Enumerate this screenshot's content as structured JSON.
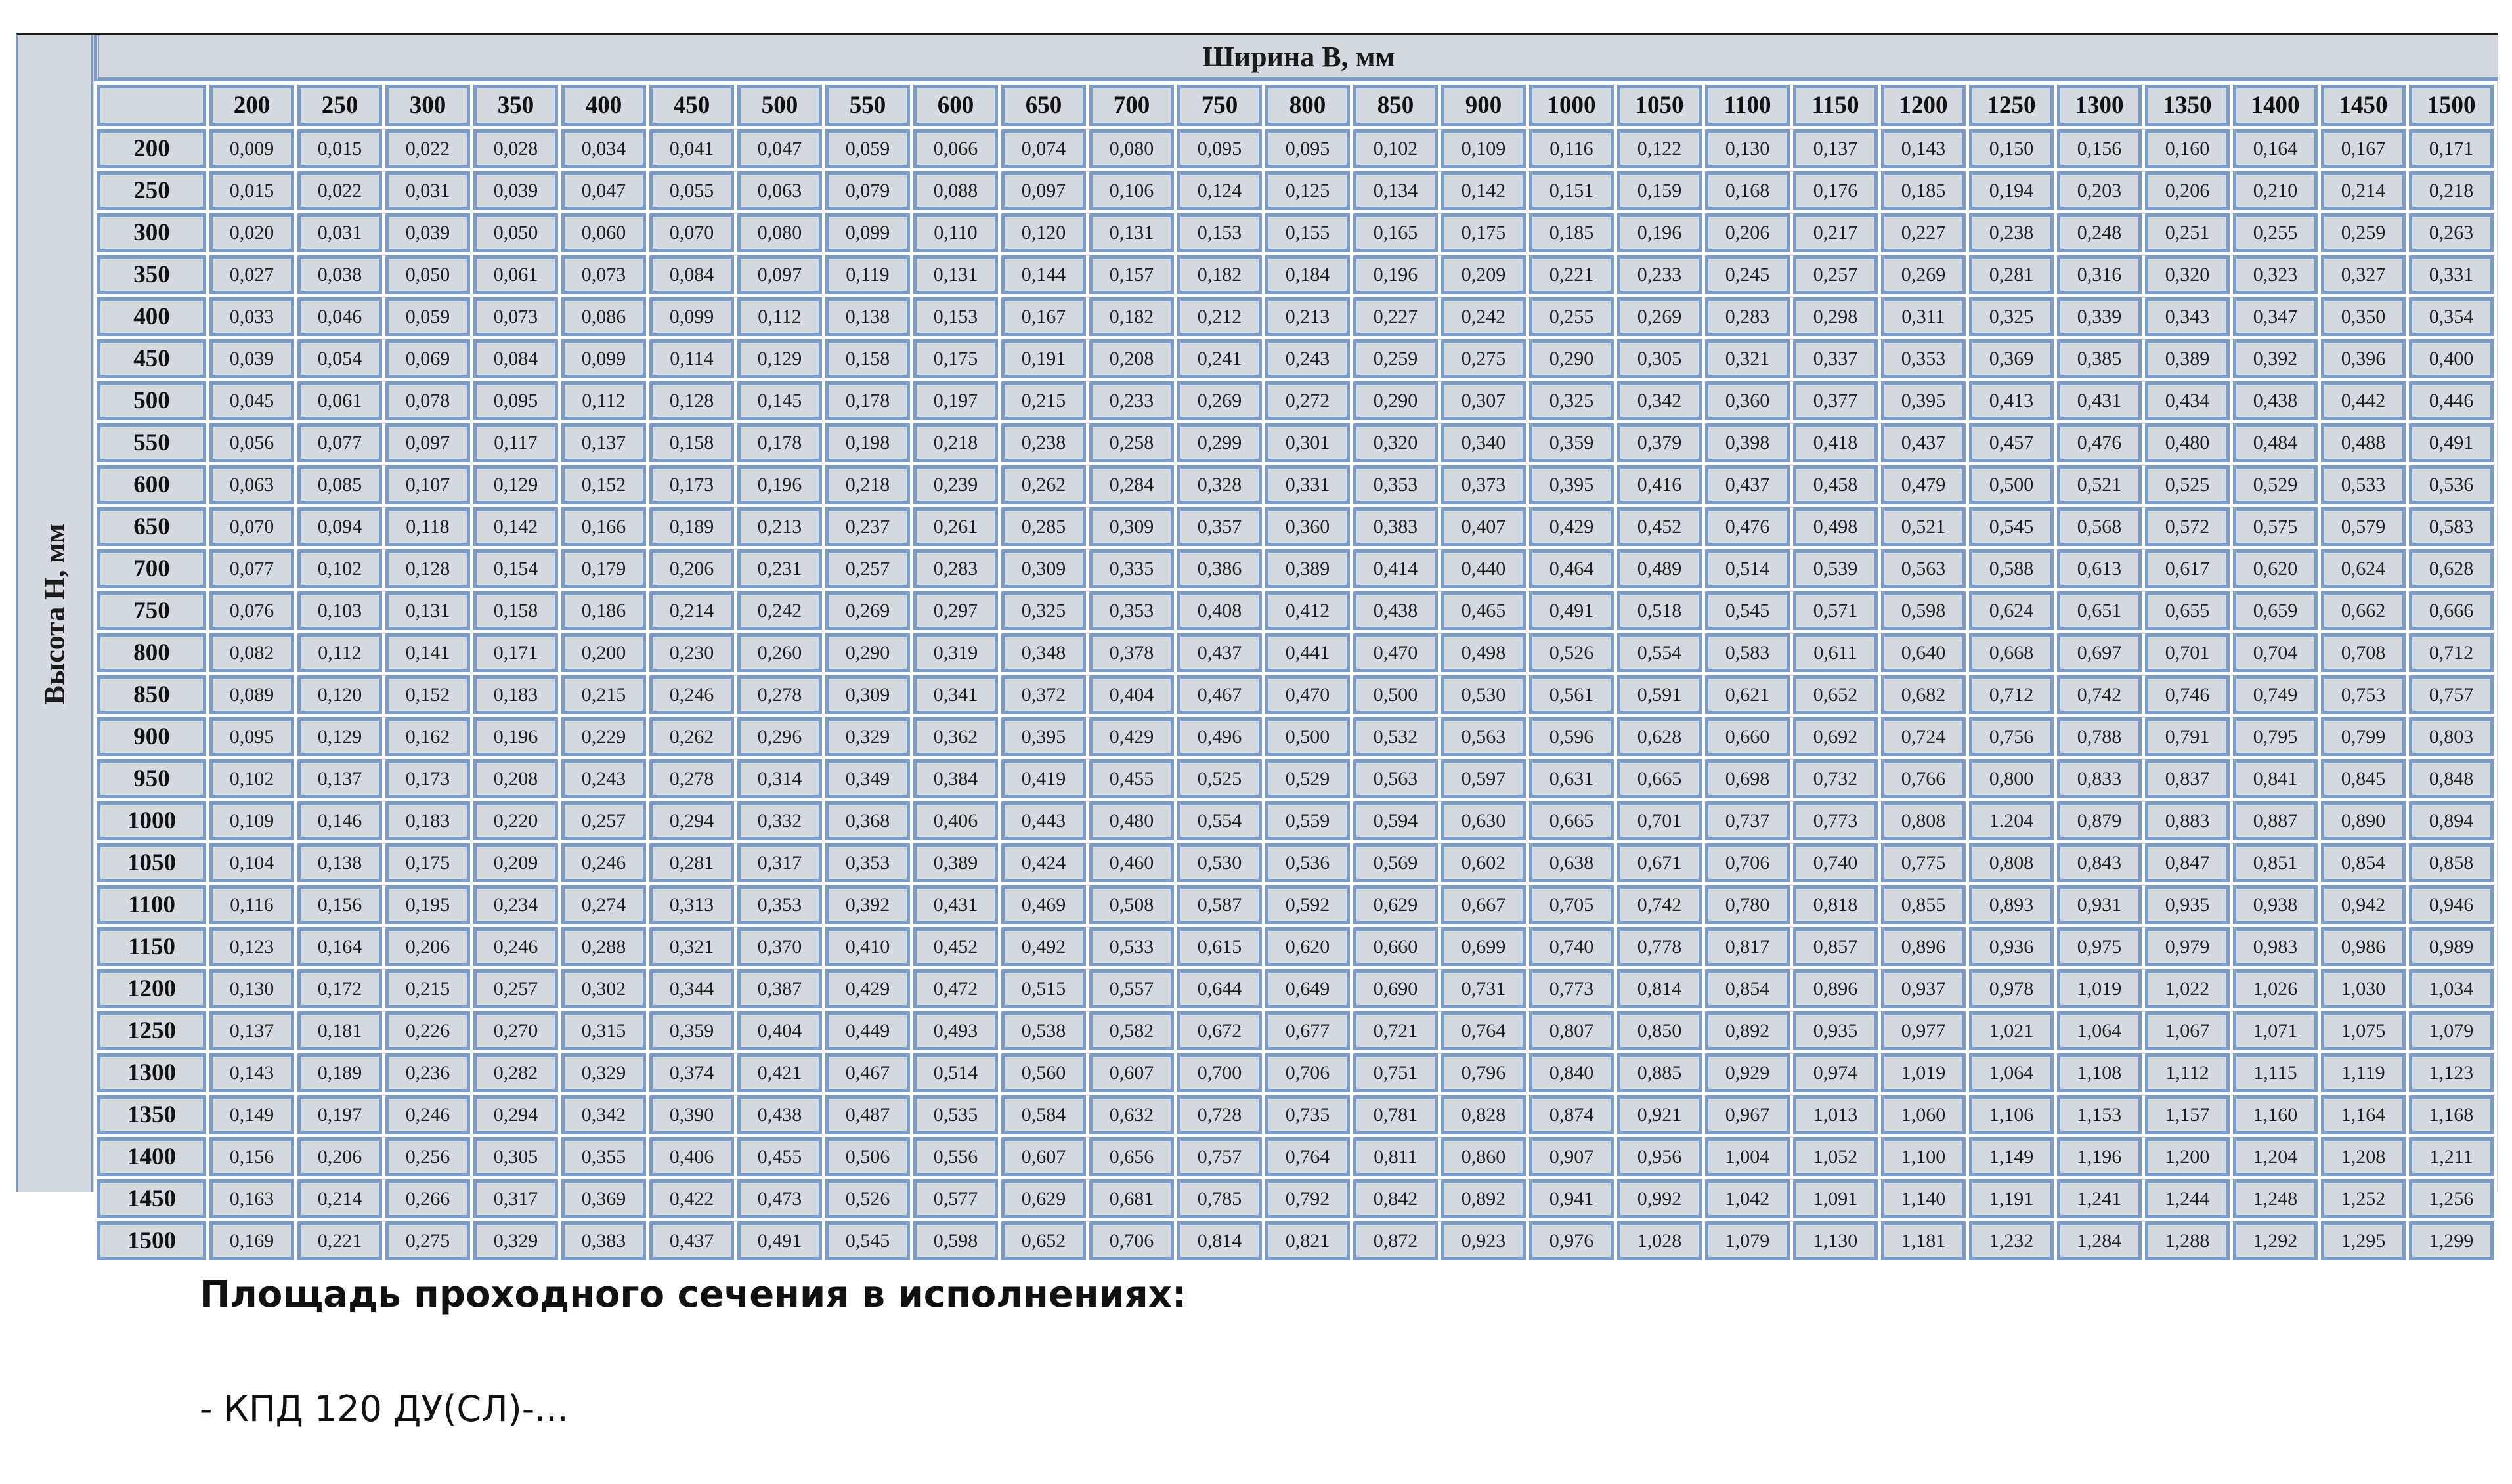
{
  "table": {
    "title": "Ширина B, мм",
    "side_label": "Высота H, мм",
    "columns": [
      "200",
      "250",
      "300",
      "350",
      "400",
      "450",
      "500",
      "550",
      "600",
      "650",
      "700",
      "750",
      "800",
      "850",
      "900",
      "1000",
      "1050",
      "1100",
      "1150",
      "1200",
      "1250",
      "1300",
      "1350",
      "1400",
      "1450",
      "1500"
    ],
    "rows": [
      {
        "h": "200",
        "v": [
          "0,009",
          "0,015",
          "0,022",
          "0,028",
          "0,034",
          "0,041",
          "0,047",
          "0,059",
          "0,066",
          "0,074",
          "0,080",
          "0,095",
          "0,095",
          "0,102",
          "0,109",
          "0,116",
          "0,122",
          "0,130",
          "0,137",
          "0,143",
          "0,150",
          "0,156",
          "0,160",
          "0,164",
          "0,167",
          "0,171"
        ]
      },
      {
        "h": "250",
        "v": [
          "0,015",
          "0,022",
          "0,031",
          "0,039",
          "0,047",
          "0,055",
          "0,063",
          "0,079",
          "0,088",
          "0,097",
          "0,106",
          "0,124",
          "0,125",
          "0,134",
          "0,142",
          "0,151",
          "0,159",
          "0,168",
          "0,176",
          "0,185",
          "0,194",
          "0,203",
          "0,206",
          "0,210",
          "0,214",
          "0,218"
        ]
      },
      {
        "h": "300",
        "v": [
          "0,020",
          "0,031",
          "0,039",
          "0,050",
          "0,060",
          "0,070",
          "0,080",
          "0,099",
          "0,110",
          "0,120",
          "0,131",
          "0,153",
          "0,155",
          "0,165",
          "0,175",
          "0,185",
          "0,196",
          "0,206",
          "0,217",
          "0,227",
          "0,238",
          "0,248",
          "0,251",
          "0,255",
          "0,259",
          "0,263"
        ]
      },
      {
        "h": "350",
        "v": [
          "0,027",
          "0,038",
          "0,050",
          "0,061",
          "0,073",
          "0,084",
          "0,097",
          "0,119",
          "0,131",
          "0,144",
          "0,157",
          "0,182",
          "0,184",
          "0,196",
          "0,209",
          "0,221",
          "0,233",
          "0,245",
          "0,257",
          "0,269",
          "0,281",
          "0,316",
          "0,320",
          "0,323",
          "0,327",
          "0,331"
        ]
      },
      {
        "h": "400",
        "v": [
          "0,033",
          "0,046",
          "0,059",
          "0,073",
          "0,086",
          "0,099",
          "0,112",
          "0,138",
          "0,153",
          "0,167",
          "0,182",
          "0,212",
          "0,213",
          "0,227",
          "0,242",
          "0,255",
          "0,269",
          "0,283",
          "0,298",
          "0,311",
          "0,325",
          "0,339",
          "0,343",
          "0,347",
          "0,350",
          "0,354"
        ]
      },
      {
        "h": "450",
        "v": [
          "0,039",
          "0,054",
          "0,069",
          "0,084",
          "0,099",
          "0,114",
          "0,129",
          "0,158",
          "0,175",
          "0,191",
          "0,208",
          "0,241",
          "0,243",
          "0,259",
          "0,275",
          "0,290",
          "0,305",
          "0,321",
          "0,337",
          "0,353",
          "0,369",
          "0,385",
          "0,389",
          "0,392",
          "0,396",
          "0,400"
        ]
      },
      {
        "h": "500",
        "v": [
          "0,045",
          "0,061",
          "0,078",
          "0,095",
          "0,112",
          "0,128",
          "0,145",
          "0,178",
          "0,197",
          "0,215",
          "0,233",
          "0,269",
          "0,272",
          "0,290",
          "0,307",
          "0,325",
          "0,342",
          "0,360",
          "0,377",
          "0,395",
          "0,413",
          "0,431",
          "0,434",
          "0,438",
          "0,442",
          "0,446"
        ]
      },
      {
        "h": "550",
        "v": [
          "0,056",
          "0,077",
          "0,097",
          "0,117",
          "0,137",
          "0,158",
          "0,178",
          "0,198",
          "0,218",
          "0,238",
          "0,258",
          "0,299",
          "0,301",
          "0,320",
          "0,340",
          "0,359",
          "0,379",
          "0,398",
          "0,418",
          "0,437",
          "0,457",
          "0,476",
          "0,480",
          "0,484",
          "0,488",
          "0,491"
        ]
      },
      {
        "h": "600",
        "v": [
          "0,063",
          "0,085",
          "0,107",
          "0,129",
          "0,152",
          "0,173",
          "0,196",
          "0,218",
          "0,239",
          "0,262",
          "0,284",
          "0,328",
          "0,331",
          "0,353",
          "0,373",
          "0,395",
          "0,416",
          "0,437",
          "0,458",
          "0,479",
          "0,500",
          "0,521",
          "0,525",
          "0,529",
          "0,533",
          "0,536"
        ]
      },
      {
        "h": "650",
        "v": [
          "0,070",
          "0,094",
          "0,118",
          "0,142",
          "0,166",
          "0,189",
          "0,213",
          "0,237",
          "0,261",
          "0,285",
          "0,309",
          "0,357",
          "0,360",
          "0,383",
          "0,407",
          "0,429",
          "0,452",
          "0,476",
          "0,498",
          "0,521",
          "0,545",
          "0,568",
          "0,572",
          "0,575",
          "0,579",
          "0,583"
        ]
      },
      {
        "h": "700",
        "v": [
          "0,077",
          "0,102",
          "0,128",
          "0,154",
          "0,179",
          "0,206",
          "0,231",
          "0,257",
          "0,283",
          "0,309",
          "0,335",
          "0,386",
          "0,389",
          "0,414",
          "0,440",
          "0,464",
          "0,489",
          "0,514",
          "0,539",
          "0,563",
          "0,588",
          "0,613",
          "0,617",
          "0,620",
          "0,624",
          "0,628"
        ]
      },
      {
        "h": "750",
        "v": [
          "0,076",
          "0,103",
          "0,131",
          "0,158",
          "0,186",
          "0,214",
          "0,242",
          "0,269",
          "0,297",
          "0,325",
          "0,353",
          "0,408",
          "0,412",
          "0,438",
          "0,465",
          "0,491",
          "0,518",
          "0,545",
          "0,571",
          "0,598",
          "0,624",
          "0,651",
          "0,655",
          "0,659",
          "0,662",
          "0,666"
        ]
      },
      {
        "h": "800",
        "v": [
          "0,082",
          "0,112",
          "0,141",
          "0,171",
          "0,200",
          "0,230",
          "0,260",
          "0,290",
          "0,319",
          "0,348",
          "0,378",
          "0,437",
          "0,441",
          "0,470",
          "0,498",
          "0,526",
          "0,554",
          "0,583",
          "0,611",
          "0,640",
          "0,668",
          "0,697",
          "0,701",
          "0,704",
          "0,708",
          "0,712"
        ]
      },
      {
        "h": "850",
        "v": [
          "0,089",
          "0,120",
          "0,152",
          "0,183",
          "0,215",
          "0,246",
          "0,278",
          "0,309",
          "0,341",
          "0,372",
          "0,404",
          "0,467",
          "0,470",
          "0,500",
          "0,530",
          "0,561",
          "0,591",
          "0,621",
          "0,652",
          "0,682",
          "0,712",
          "0,742",
          "0,746",
          "0,749",
          "0,753",
          "0,757"
        ]
      },
      {
        "h": "900",
        "v": [
          "0,095",
          "0,129",
          "0,162",
          "0,196",
          "0,229",
          "0,262",
          "0,296",
          "0,329",
          "0,362",
          "0,395",
          "0,429",
          "0,496",
          "0,500",
          "0,532",
          "0,563",
          "0,596",
          "0,628",
          "0,660",
          "0,692",
          "0,724",
          "0,756",
          "0,788",
          "0,791",
          "0,795",
          "0,799",
          "0,803"
        ]
      },
      {
        "h": "950",
        "v": [
          "0,102",
          "0,137",
          "0,173",
          "0,208",
          "0,243",
          "0,278",
          "0,314",
          "0,349",
          "0,384",
          "0,419",
          "0,455",
          "0,525",
          "0,529",
          "0,563",
          "0,597",
          "0,631",
          "0,665",
          "0,698",
          "0,732",
          "0,766",
          "0,800",
          "0,833",
          "0,837",
          "0,841",
          "0,845",
          "0,848"
        ]
      },
      {
        "h": "1000",
        "v": [
          "0,109",
          "0,146",
          "0,183",
          "0,220",
          "0,257",
          "0,294",
          "0,332",
          "0,368",
          "0,406",
          "0,443",
          "0,480",
          "0,554",
          "0,559",
          "0,594",
          "0,630",
          "0,665",
          "0,701",
          "0,737",
          "0,773",
          "0,808",
          "1.204",
          "0,879",
          "0,883",
          "0,887",
          "0,890",
          "0,894"
        ]
      },
      {
        "h": "1050",
        "v": [
          "0,104",
          "0,138",
          "0,175",
          "0,209",
          "0,246",
          "0,281",
          "0,317",
          "0,353",
          "0,389",
          "0,424",
          "0,460",
          "0,530",
          "0,536",
          "0,569",
          "0,602",
          "0,638",
          "0,671",
          "0,706",
          "0,740",
          "0,775",
          "0,808",
          "0,843",
          "0,847",
          "0,851",
          "0,854",
          "0,858"
        ]
      },
      {
        "h": "1100",
        "v": [
          "0,116",
          "0,156",
          "0,195",
          "0,234",
          "0,274",
          "0,313",
          "0,353",
          "0,392",
          "0,431",
          "0,469",
          "0,508",
          "0,587",
          "0,592",
          "0,629",
          "0,667",
          "0,705",
          "0,742",
          "0,780",
          "0,818",
          "0,855",
          "0,893",
          "0,931",
          "0,935",
          "0,938",
          "0,942",
          "0,946"
        ]
      },
      {
        "h": "1150",
        "v": [
          "0,123",
          "0,164",
          "0,206",
          "0,246",
          "0,288",
          "0,321",
          "0,370",
          "0,410",
          "0,452",
          "0,492",
          "0,533",
          "0,615",
          "0,620",
          "0,660",
          "0,699",
          "0,740",
          "0,778",
          "0,817",
          "0,857",
          "0,896",
          "0,936",
          "0,975",
          "0,979",
          "0,983",
          "0,986",
          "0,989"
        ]
      },
      {
        "h": "1200",
        "v": [
          "0,130",
          "0,172",
          "0,215",
          "0,257",
          "0,302",
          "0,344",
          "0,387",
          "0,429",
          "0,472",
          "0,515",
          "0,557",
          "0,644",
          "0,649",
          "0,690",
          "0,731",
          "0,773",
          "0,814",
          "0,854",
          "0,896",
          "0,937",
          "0,978",
          "1,019",
          "1,022",
          "1,026",
          "1,030",
          "1,034"
        ]
      },
      {
        "h": "1250",
        "v": [
          "0,137",
          "0,181",
          "0,226",
          "0,270",
          "0,315",
          "0,359",
          "0,404",
          "0,449",
          "0,493",
          "0,538",
          "0,582",
          "0,672",
          "0,677",
          "0,721",
          "0,764",
          "0,807",
          "0,850",
          "0,892",
          "0,935",
          "0,977",
          "1,021",
          "1,064",
          "1,067",
          "1,071",
          "1,075",
          "1,079"
        ]
      },
      {
        "h": "1300",
        "v": [
          "0,143",
          "0,189",
          "0,236",
          "0,282",
          "0,329",
          "0,374",
          "0,421",
          "0,467",
          "0,514",
          "0,560",
          "0,607",
          "0,700",
          "0,706",
          "0,751",
          "0,796",
          "0,840",
          "0,885",
          "0,929",
          "0,974",
          "1,019",
          "1,064",
          "1,108",
          "1,112",
          "1,115",
          "1,119",
          "1,123"
        ]
      },
      {
        "h": "1350",
        "v": [
          "0,149",
          "0,197",
          "0,246",
          "0,294",
          "0,342",
          "0,390",
          "0,438",
          "0,487",
          "0,535",
          "0,584",
          "0,632",
          "0,728",
          "0,735",
          "0,781",
          "0,828",
          "0,874",
          "0,921",
          "0,967",
          "1,013",
          "1,060",
          "1,106",
          "1,153",
          "1,157",
          "1,160",
          "1,164",
          "1,168"
        ]
      },
      {
        "h": "1400",
        "v": [
          "0,156",
          "0,206",
          "0,256",
          "0,305",
          "0,355",
          "0,406",
          "0,455",
          "0,506",
          "0,556",
          "0,607",
          "0,656",
          "0,757",
          "0,764",
          "0,811",
          "0,860",
          "0,907",
          "0,956",
          "1,004",
          "1,052",
          "1,100",
          "1,149",
          "1,196",
          "1,200",
          "1,204",
          "1,208",
          "1,211"
        ]
      },
      {
        "h": "1450",
        "v": [
          "0,163",
          "0,214",
          "0,266",
          "0,317",
          "0,369",
          "0,422",
          "0,473",
          "0,526",
          "0,577",
          "0,629",
          "0,681",
          "0,785",
          "0,792",
          "0,842",
          "0,892",
          "0,941",
          "0,992",
          "1,042",
          "1,091",
          "1,140",
          "1,191",
          "1,241",
          "1,244",
          "1,248",
          "1,252",
          "1,256"
        ]
      },
      {
        "h": "1500",
        "v": [
          "0,169",
          "0,221",
          "0,275",
          "0,329",
          "0,383",
          "0,437",
          "0,491",
          "0,545",
          "0,598",
          "0,652",
          "0,706",
          "0,814",
          "0,821",
          "0,872",
          "0,923",
          "0,976",
          "1,028",
          "1,079",
          "1,130",
          "1,181",
          "1,232",
          "1,284",
          "1,288",
          "1,292",
          "1,295",
          "1,299"
        ]
      }
    ]
  },
  "caption": "Площадь проходного сечения в исполнениях:",
  "subcaption": "- КПД 120 ДУ(СЛ)-..."
}
